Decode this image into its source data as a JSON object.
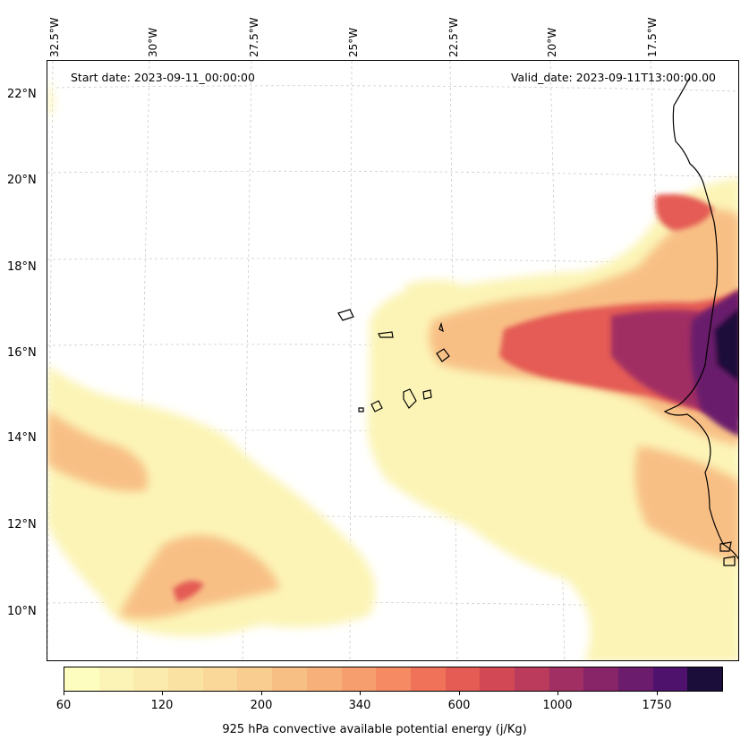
{
  "map": {
    "start_date": "Start date: 2023-09-11_00:00:00",
    "valid_date": "Valid_date: 2023-09-11T13:00:00.00",
    "longitude_labels": [
      "32.5°W",
      "30°W",
      "27.5°W",
      "25°W",
      "22.5°W",
      "20°W",
      "17.5°W"
    ],
    "latitude_labels": [
      "22°N",
      "20°N",
      "18°N",
      "16°N",
      "14°N",
      "12°N",
      "10°N"
    ],
    "field": "925 hPa convective available potential energy",
    "colors": [
      "#fcfdbf",
      "#fcf4b6",
      "#fbebac",
      "#fae2a3",
      "#fad89a",
      "#f9cc8f",
      "#f8bf85",
      "#f8b07a",
      "#f79e6f",
      "#f58a63",
      "#f07359",
      "#e45c54",
      "#d24855",
      "#ba3b5c",
      "#a12f63",
      "#882468",
      "#6b1c6c",
      "#4e126d",
      "#1c0e3b"
    ]
  },
  "colorbar": {
    "tick_labels": [
      "60",
      "120",
      "200",
      "340",
      "600",
      "1000",
      "1750"
    ],
    "label": "925 hPa convective available potential energy (j/Kg)"
  }
}
